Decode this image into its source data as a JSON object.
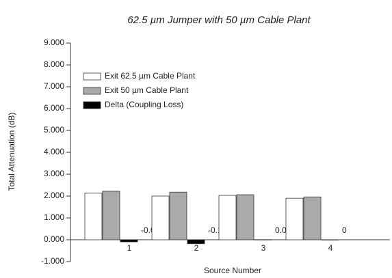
{
  "chart_data": {
    "type": "bar",
    "title": "62.5 µm Jumper with 50 µm Cable Plant",
    "xlabel": "Source Number",
    "ylabel": "Total Attenuation (dB)",
    "categories": [
      "1",
      "2",
      "3",
      "4"
    ],
    "series": [
      {
        "name": "Exit 62.5 µm Cable Plant",
        "color": "#ffffff",
        "values": [
          2.13,
          2.0,
          2.03,
          1.9
        ]
      },
      {
        "name": "Exit 50 µm Cable Plant",
        "color": "#aaaaaa",
        "values": [
          2.22,
          2.18,
          2.06,
          1.96
        ]
      },
      {
        "name": "Delta (Coupling Loss)",
        "color": "#000000",
        "values": [
          -0.097,
          -0.181,
          0.006,
          0
        ]
      }
    ],
    "data_labels_series": 2,
    "ylim": [
      -1,
      9
    ],
    "yticks": [
      {
        "value": -1,
        "label": "-1.000"
      },
      {
        "value": 0,
        "label": "0.000"
      },
      {
        "value": 1,
        "label": "1.000"
      },
      {
        "value": 2,
        "label": "2.000"
      },
      {
        "value": 3,
        "label": "3.000"
      },
      {
        "value": 4,
        "label": "4.000"
      },
      {
        "value": 5,
        "label": "5.000"
      },
      {
        "value": 6,
        "label": "6.000"
      },
      {
        "value": 7,
        "label": "7.000"
      },
      {
        "value": 8,
        "label": "8.000"
      },
      {
        "value": 9,
        "label": "9.000"
      }
    ],
    "legend": "upper left"
  }
}
